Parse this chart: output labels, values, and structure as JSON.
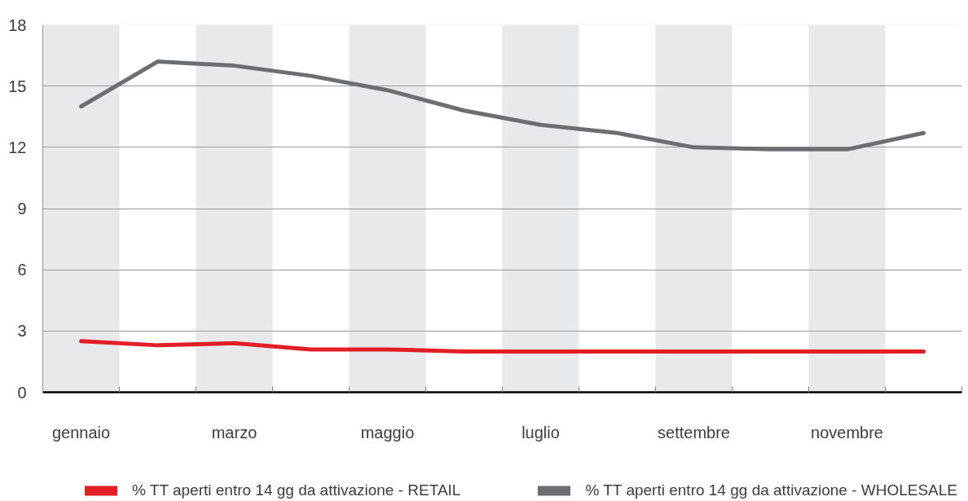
{
  "chart_data": {
    "type": "line",
    "categories": [
      "gennaio",
      null,
      "marzo",
      null,
      "maggio",
      null,
      "luglio",
      null,
      "settembre",
      null,
      "novembre",
      null
    ],
    "series": [
      {
        "name": "% TT aperti entro 14 gg da attivazione - RETAIL",
        "color": "#e31e25",
        "values": [
          2.5,
          2.3,
          2.4,
          2.1,
          2.1,
          2.0,
          2.0,
          2.0,
          2.0,
          2.0,
          2.0,
          2.0
        ]
      },
      {
        "name": "% TT aperti entro 14 gg da attivazione - WHOLESALE",
        "color": "#6d6e71",
        "values": [
          14.0,
          16.2,
          16.0,
          15.5,
          14.8,
          13.8,
          13.1,
          12.7,
          12.0,
          11.9,
          11.9,
          12.7
        ]
      }
    ],
    "ylim": [
      0,
      18
    ],
    "yticks": [
      0,
      3,
      6,
      9,
      12,
      15,
      18
    ],
    "grid": true,
    "legend": "bottom",
    "line_style": "solid"
  }
}
